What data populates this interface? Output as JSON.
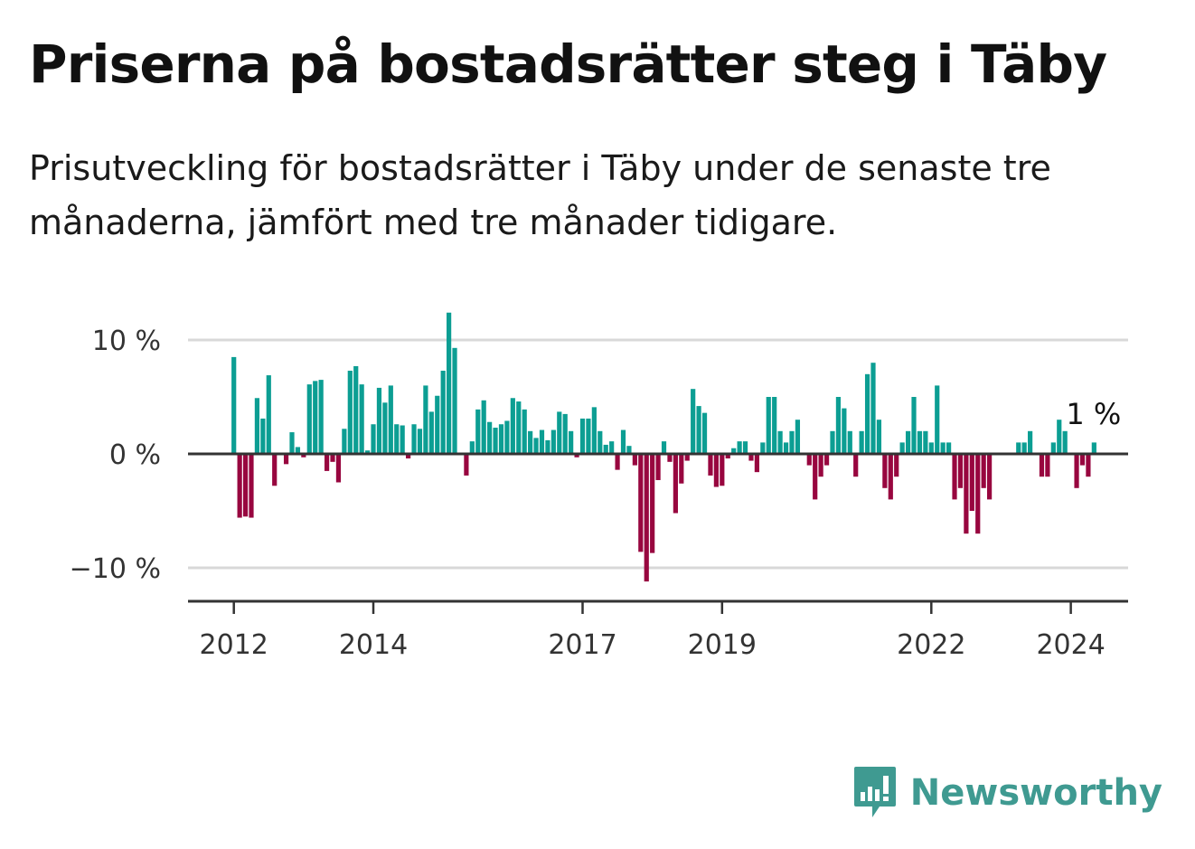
{
  "header": {
    "title": "Priserna på bostadsrätter steg i Täby",
    "subtitle": "Prisutveckling för bostadsrätter i Täby under de senaste tre månaderna, jämfört med tre månader tidigare."
  },
  "colors": {
    "positive": "#0c9e93",
    "negative": "#98063f",
    "grid": "#d8d8d8",
    "axis": "#333333",
    "brand": "#3f9a91"
  },
  "brand": {
    "name": "Newsworthy",
    "icon": "newsworthy-logo-icon"
  },
  "chart_data": {
    "type": "bar",
    "x_start": "2012-01",
    "x_step": "month",
    "ylim": [
      -12.5,
      12.5
    ],
    "yticks": [
      10,
      0,
      -10
    ],
    "ytick_labels": [
      "10 %",
      "0 %",
      "−10 %"
    ],
    "xtick_labels": [
      "2012",
      "2014",
      "2017",
      "2019",
      "2022",
      "2024"
    ],
    "xticks": [
      "2012-01",
      "2014-01",
      "2017-01",
      "2019-01",
      "2022-01",
      "2024-01"
    ],
    "last_value_label": "1 %",
    "grid": true,
    "legend": "none",
    "values": [
      8.5,
      -5.6,
      -5.5,
      -5.6,
      4.9,
      3.1,
      6.9,
      -2.8,
      0,
      -0.9,
      1.9,
      0.6,
      -0.3,
      6.1,
      6.4,
      6.5,
      -1.5,
      -0.7,
      -2.5,
      2.2,
      7.3,
      7.7,
      6.1,
      0.3,
      2.6,
      5.8,
      4.5,
      6.0,
      2.6,
      2.5,
      -0.4,
      2.6,
      2.2,
      6.0,
      3.7,
      5.1,
      7.3,
      12.4,
      9.3,
      0,
      -1.9,
      1.1,
      3.9,
      4.7,
      2.8,
      2.3,
      2.6,
      2.9,
      4.9,
      4.6,
      3.9,
      2.0,
      1.4,
      2.1,
      1.2,
      2.1,
      3.7,
      3.5,
      2.0,
      -0.3,
      3.1,
      3.1,
      4.1,
      2.0,
      0.8,
      1.1,
      -1.4,
      2.1,
      0.7,
      -1.0,
      -8.6,
      -11.2,
      -8.7,
      -2.3,
      1.1,
      -0.7,
      -5.2,
      -2.6,
      -0.6,
      5.7,
      4.2,
      3.6,
      -1.9,
      -2.9,
      -2.8,
      -0.4,
      0.5,
      1.1,
      1.1,
      -0.6,
      -1.6,
      1.0,
      5.0,
      5.0,
      2.0,
      1.0,
      2.0,
      3.0,
      0,
      -1.0,
      -4.0,
      -2.0,
      -1.0,
      2.0,
      5.0,
      4.0,
      2.0,
      -2.0,
      2.0,
      7.0,
      8.0,
      3.0,
      -3.0,
      -4.0,
      -2.0,
      1.0,
      2.0,
      5.0,
      2.0,
      2.0,
      1.0,
      6.0,
      1.0,
      1.0,
      -4.0,
      -3.0,
      -7.0,
      -5.0,
      -7.0,
      -3.0,
      -4.0,
      0,
      0,
      0,
      0,
      1.0,
      1.0,
      2.0,
      0,
      -2.0,
      -2.0,
      1.0,
      3.0,
      2.0,
      0,
      -3.0,
      -1.0,
      -2.0,
      1.0
    ]
  }
}
